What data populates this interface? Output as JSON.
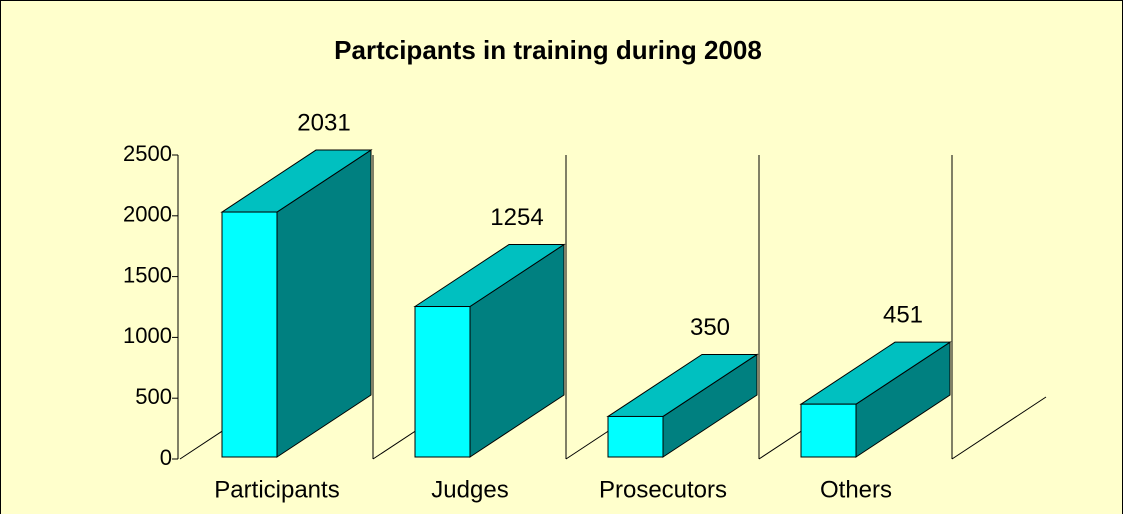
{
  "chart_data": {
    "type": "bar3d",
    "title": "Partcipants in training during 2008",
    "categories": [
      "Participants",
      "Judges",
      "Prosecutors",
      "Others"
    ],
    "values": [
      2031,
      1254,
      350,
      451
    ],
    "ylim": [
      0,
      2500
    ],
    "yticks": [
      0,
      500,
      1000,
      1500,
      2000,
      2500
    ],
    "colors": {
      "front": "#00ffff",
      "top": "#00c0c0",
      "side": "#008080"
    }
  }
}
